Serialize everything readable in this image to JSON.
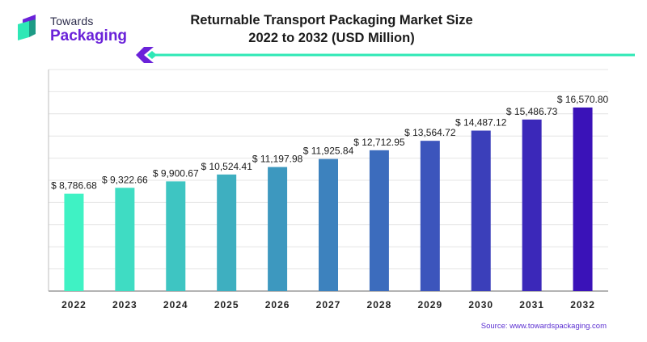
{
  "brand": {
    "line1": "Towards",
    "line2": "Packaging"
  },
  "header": {
    "title_line1": "Returnable Transport Packaging Market Size",
    "title_line2": "2022 to 2032 (USD Million)"
  },
  "source": "Source: www.towardspackaging.com",
  "colors": {
    "brand_purple": "#6a22d9",
    "brand_teal": "#2ee8b6",
    "bar_start": "#3ff2c4",
    "bar_end": "#3a12b8"
  },
  "chart_data": {
    "type": "bar",
    "title": "Returnable Transport Packaging Market Size 2022 to 2032 (USD Million)",
    "categories": [
      "2022",
      "2023",
      "2024",
      "2025",
      "2026",
      "2027",
      "2028",
      "2029",
      "2030",
      "2031",
      "2032"
    ],
    "values": [
      8786.68,
      9322.66,
      9900.67,
      10524.41,
      11197.98,
      11925.84,
      12712.95,
      13564.72,
      14487.12,
      15486.73,
      16570.8
    ],
    "data_labels": [
      "$ 8,786.68",
      "$ 9,322.66",
      "$ 9,900.67",
      "$ 10,524.41",
      "$ 11,197.98",
      "$ 11,925.84",
      "$ 12,712.95",
      "$ 13,564.72",
      "$ 14,487.12",
      "$ 15,486.73",
      "$ 16,570.80"
    ],
    "xlabel": "",
    "ylabel": "",
    "ylim": [
      0,
      20000
    ],
    "grid": true,
    "legend": "none"
  }
}
